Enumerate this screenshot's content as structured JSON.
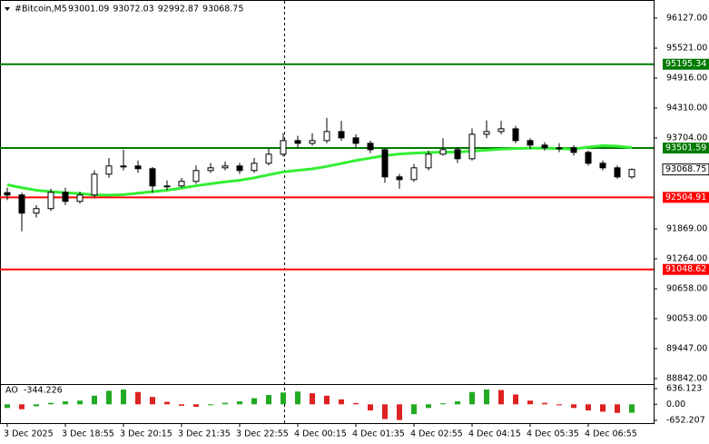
{
  "chart_data": {
    "type": "candlestick",
    "symbol": "#Bitcoin,M5",
    "ohlc": [
      93001.09,
      93072.03,
      92992.87,
      93068.75
    ],
    "categories": [
      "3 Dec 2025",
      null,
      null,
      null,
      "3 Dec 18:55",
      null,
      null,
      null,
      "3 Dec 20:15",
      null,
      null,
      null,
      "3 Dec 21:35",
      null,
      null,
      null,
      "3 Dec 22:55",
      null,
      null,
      null,
      "4 Dec 00:15",
      null,
      null,
      null,
      "4 Dec 01:35",
      null,
      null,
      null,
      "4 Dec 02:55",
      null,
      null,
      null,
      "4 Dec 04:15",
      null,
      null,
      null,
      "4 Dec 05:35",
      null,
      null,
      null,
      "4 Dec 06:55",
      null,
      null,
      null
    ],
    "open": [
      92600,
      92553,
      92186,
      92278,
      92607,
      92424,
      92553,
      92974,
      93139,
      93139,
      93084,
      92736,
      92736,
      92828,
      93047,
      93102,
      93139,
      93047,
      93194,
      93377,
      93652,
      93597,
      93652,
      93835,
      93707,
      93597,
      93469,
      92919,
      92864,
      93102,
      93377,
      93469,
      93286,
      93780,
      93835,
      93890,
      93652,
      93561,
      93506,
      93506,
      93414,
      93194,
      93102,
      92919
    ],
    "high": [
      92700,
      92600,
      92350,
      92680,
      92700,
      92620,
      93050,
      93300,
      93469,
      93250,
      93120,
      92850,
      92900,
      93150,
      93200,
      93230,
      93200,
      93300,
      93500,
      93800,
      93750,
      93800,
      94110,
      94050,
      93780,
      93650,
      93500,
      92980,
      93180,
      93450,
      93700,
      93520,
      93900,
      94060,
      94050,
      93950,
      93700,
      93620,
      93600,
      93560,
      93450,
      93250,
      93150,
      93090
    ],
    "low": [
      92450,
      91820,
      92100,
      92230,
      92350,
      92380,
      92500,
      92900,
      93050,
      93000,
      92600,
      92650,
      92700,
      92780,
      93000,
      93050,
      92980,
      93000,
      93150,
      93330,
      93500,
      93550,
      93600,
      93650,
      93500,
      93400,
      92800,
      92680,
      92820,
      93050,
      93350,
      93200,
      93250,
      93700,
      93780,
      93600,
      93480,
      93450,
      93420,
      93350,
      93150,
      93050,
      92880,
      92880
    ],
    "close": [
      92553,
      92186,
      92278,
      92607,
      92424,
      92553,
      92974,
      93139,
      93139,
      93084,
      92736,
      92736,
      92828,
      93047,
      93102,
      93139,
      93047,
      93194,
      93377,
      93652,
      93597,
      93652,
      93835,
      93707,
      93597,
      93469,
      92919,
      92864,
      93102,
      93377,
      93469,
      93286,
      93780,
      93835,
      93890,
      93652,
      93561,
      93506,
      93506,
      93414,
      93194,
      93102,
      92919,
      93069
    ],
    "bull_color": "#ffffff",
    "bear_color": "#000000",
    "ylim": [
      88732,
      96420
    ],
    "yticks": [
      {
        "value": 96127,
        "label": "96127.00"
      },
      {
        "value": 95521,
        "label": "95521.00"
      },
      {
        "value": 94916,
        "label": "94916.00"
      },
      {
        "value": 94310,
        "label": "94310.00"
      },
      {
        "value": 93704,
        "label": "93704.00"
      },
      {
        "value": 91869,
        "label": "91869.00"
      },
      {
        "value": 91264,
        "label": "91264.00"
      },
      {
        "value": 90658,
        "label": "90658.00"
      },
      {
        "value": 90053,
        "label": "90053.00"
      },
      {
        "value": 89447,
        "label": "89447.00"
      },
      {
        "value": 88842,
        "label": "88842.00"
      }
    ],
    "levels": [
      {
        "value": 95195.34,
        "color": "#007a00"
      },
      {
        "value": 93501.59,
        "color": "#007a00"
      },
      {
        "value": 92504.91,
        "color": "#ff0000"
      },
      {
        "value": 91048.62,
        "color": "#ff0000"
      }
    ],
    "last_price": 93068.75,
    "ma": {
      "color": "#33ee33",
      "values": [
        92760,
        92700,
        92650,
        92620,
        92600,
        92580,
        92555,
        92550,
        92560,
        92590,
        92620,
        92650,
        92690,
        92740,
        92780,
        92820,
        92850,
        92900,
        92960,
        93020,
        93050,
        93080,
        93130,
        93190,
        93250,
        93300,
        93350,
        93380,
        93400,
        93410,
        93420,
        93420,
        93440,
        93460,
        93480,
        93490,
        93500,
        93500,
        93490,
        93480,
        93520,
        93550,
        93540,
        93510
      ]
    },
    "ao": {
      "name": "AO",
      "current": -344.226,
      "rising_color": "#22aa22",
      "falling_color": "#dd2222",
      "values": [
        -150,
        -200,
        -80,
        60,
        120,
        150,
        350,
        550,
        600,
        500,
        300,
        100,
        -60,
        -100,
        -40,
        60,
        120,
        250,
        380,
        480,
        520,
        450,
        350,
        200,
        50,
        -250,
        -600,
        -640,
        -400,
        -150,
        40,
        120,
        500,
        600,
        580,
        400,
        150,
        60,
        -40,
        -150,
        -250,
        -300,
        -350,
        -344.226
      ],
      "ylim": [
        -765,
        786
      ],
      "yticks": [
        636.123,
        {
          "value": 0,
          "label": "0.00"
        },
        -652.207
      ]
    }
  }
}
